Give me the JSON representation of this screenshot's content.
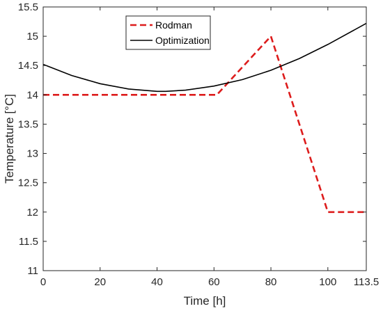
{
  "chart_data": {
    "type": "line",
    "xlabel": "Time [h]",
    "ylabel": "Temperature [°C]",
    "xlim": [
      0,
      113.5
    ],
    "ylim": [
      11,
      15.5
    ],
    "xticks": [
      0,
      20,
      40,
      60,
      80,
      100,
      113.5
    ],
    "xtick_labels": [
      "0",
      "20",
      "40",
      "60",
      "80",
      "100",
      "113.5"
    ],
    "yticks": [
      11,
      11.5,
      12,
      12.5,
      13,
      13.5,
      14,
      14.5,
      15,
      15.5
    ],
    "ytick_labels": [
      "11",
      "11.5",
      "12",
      "12.5",
      "13",
      "13.5",
      "14",
      "14.5",
      "15",
      "15.5"
    ],
    "grid": false,
    "legend_position": "top-center",
    "series": [
      {
        "name": "Rodman",
        "color": "#dd1c1c",
        "style": "dashed",
        "x": [
          0,
          61,
          80,
          100,
          113.5
        ],
        "y": [
          14.0,
          14.0,
          15.0,
          12.0,
          12.0
        ]
      },
      {
        "name": "Optimization",
        "color": "#000000",
        "style": "solid",
        "x": [
          0,
          10,
          20,
          30,
          40,
          43,
          50,
          60,
          70,
          80,
          90,
          100,
          113.5
        ],
        "y": [
          14.52,
          14.33,
          14.19,
          14.1,
          14.06,
          14.06,
          14.08,
          14.15,
          14.26,
          14.42,
          14.62,
          14.86,
          15.22
        ]
      }
    ]
  }
}
